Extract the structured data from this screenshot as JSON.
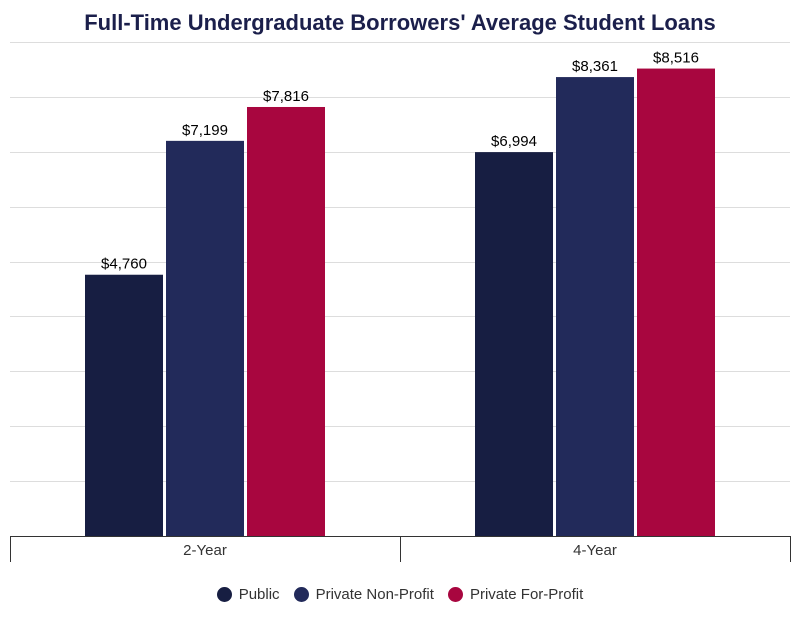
{
  "chart_data": {
    "type": "bar",
    "title": "Full-Time Undergraduate Borrowers' Average Student Loans",
    "xlabel": "",
    "ylabel": "",
    "categories": [
      "2-Year",
      "4-Year"
    ],
    "series": [
      {
        "name": "Public",
        "values": [
          4760,
          6994
        ],
        "labels": [
          "$4,760",
          "$6,994"
        ],
        "color": "#171e42"
      },
      {
        "name": "Private Non-Profit",
        "values": [
          7199,
          8361
        ],
        "labels": [
          "$7,199",
          "$8,361"
        ],
        "color": "#222a5a"
      },
      {
        "name": "Private For-Profit",
        "values": [
          7816,
          8516
        ],
        "labels": [
          "$7,816",
          "$8,516"
        ],
        "color": "#a8063f"
      }
    ],
    "ylim": [
      0,
      9000
    ],
    "grid": true,
    "legend_position": "bottom-center"
  }
}
